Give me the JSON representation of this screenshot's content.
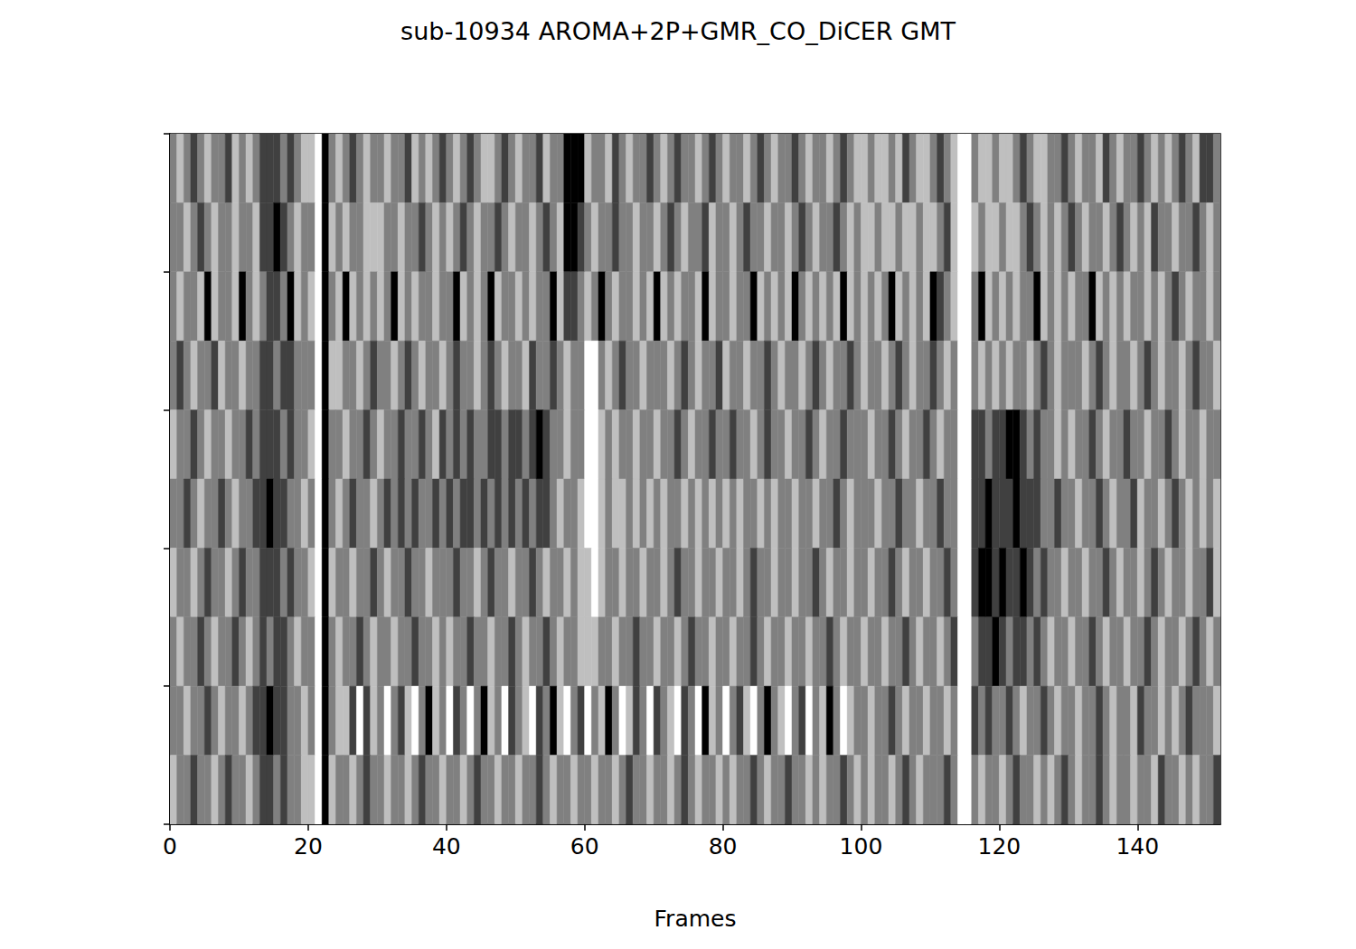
{
  "chart_data": {
    "type": "heatmap",
    "title": "sub-10934 AROMA+2P+GMR_CO_DiCER GMT",
    "x_label": "Frames",
    "xlim": [
      0,
      152
    ],
    "xticks": [
      0,
      20,
      40,
      60,
      80,
      100,
      120,
      140
    ],
    "ylim": [
      0,
      10
    ],
    "yticks": [
      0,
      2,
      4,
      6,
      8,
      10
    ],
    "tick_labels": "x",
    "color_range": [
      -2,
      2
    ],
    "cells": [
      [
        0,
        1,
        0,
        -1,
        0,
        1,
        0,
        0,
        -1,
        1,
        0,
        1,
        0,
        -1,
        -1,
        -1,
        0,
        -1,
        0,
        1,
        1,
        2,
        -2,
        0,
        1,
        0,
        -1,
        0,
        1,
        0,
        0,
        1,
        0,
        0,
        -1,
        1,
        0,
        1,
        0,
        -1,
        0,
        1,
        0,
        -1,
        0,
        1,
        1,
        0,
        -1,
        0,
        1,
        0,
        0,
        -1,
        1,
        0,
        0,
        -2,
        -2,
        -2,
        1,
        0,
        0,
        1,
        -1,
        0,
        1,
        0,
        0,
        -1,
        0,
        1,
        0,
        -1,
        0,
        0,
        1,
        0,
        -1,
        0,
        1,
        0,
        0,
        1,
        0,
        -1,
        0,
        1,
        0,
        0,
        -1,
        0,
        1,
        0,
        0,
        1,
        0,
        -1,
        0,
        1,
        1,
        0,
        1,
        1,
        0,
        1,
        -1,
        0,
        1,
        1,
        0,
        -1,
        0,
        1,
        2,
        2,
        0,
        1,
        1,
        0,
        1,
        1,
        0,
        -1,
        0,
        1,
        1,
        0,
        0,
        -1,
        0,
        1,
        0,
        0,
        1,
        -1,
        0,
        1,
        0,
        0,
        -1,
        0,
        1,
        0,
        1,
        0,
        -1,
        0,
        1,
        -1,
        -1,
        0
      ],
      [
        0,
        0,
        1,
        0,
        -1,
        0,
        1,
        0,
        0,
        1,
        0,
        0,
        1,
        -1,
        -1,
        -2,
        -1,
        0,
        1,
        0,
        0,
        2,
        -2,
        1,
        0,
        1,
        0,
        0,
        1,
        1,
        1,
        0,
        0,
        1,
        0,
        0,
        -1,
        0,
        1,
        0,
        1,
        0,
        -1,
        0,
        1,
        0,
        0,
        -1,
        0,
        1,
        0,
        0,
        1,
        0,
        -1,
        0,
        1,
        -2,
        -2,
        -1,
        0,
        1,
        0,
        0,
        -1,
        0,
        0,
        1,
        0,
        0,
        1,
        0,
        -1,
        0,
        1,
        0,
        0,
        -1,
        1,
        0,
        0,
        1,
        0,
        -1,
        0,
        0,
        1,
        0,
        0,
        1,
        0,
        -1,
        0,
        1,
        0,
        0,
        -1,
        0,
        1,
        0,
        1,
        1,
        0,
        1,
        1,
        0,
        1,
        1,
        0,
        1,
        1,
        0,
        -1,
        1,
        2,
        2,
        1,
        0,
        1,
        1,
        0,
        1,
        1,
        0,
        -1,
        0,
        1,
        0,
        1,
        0,
        -1,
        0,
        1,
        0,
        0,
        1,
        0,
        -1,
        0,
        1,
        0,
        1,
        -1,
        0,
        0,
        1,
        0,
        0,
        -1,
        0,
        1,
        0
      ],
      [
        0,
        1,
        0,
        0,
        1,
        -2,
        1,
        0,
        0,
        1,
        -2,
        0,
        1,
        0,
        -1,
        -1,
        0,
        -2,
        1,
        0,
        1,
        2,
        -2,
        0,
        1,
        -2,
        1,
        0,
        1,
        0,
        1,
        0,
        -2,
        1,
        0,
        1,
        0,
        0,
        1,
        0,
        0,
        -2,
        1,
        0,
        1,
        0,
        -2,
        1,
        0,
        0,
        1,
        0,
        1,
        0,
        0,
        -2,
        1,
        -1,
        -1,
        0,
        1,
        0,
        -2,
        0,
        1,
        0,
        0,
        1,
        0,
        1,
        -2,
        1,
        0,
        1,
        0,
        0,
        1,
        -2,
        1,
        0,
        0,
        1,
        0,
        0,
        -2,
        1,
        0,
        1,
        0,
        1,
        -2,
        0,
        1,
        0,
        1,
        0,
        1,
        -2,
        1,
        0,
        1,
        0,
        1,
        0,
        -2,
        1,
        0,
        1,
        0,
        1,
        -2,
        -1,
        0,
        1,
        2,
        2,
        0,
        -2,
        1,
        0,
        1,
        0,
        1,
        0,
        0,
        -2,
        1,
        0,
        1,
        0,
        1,
        0,
        0,
        -2,
        1,
        0,
        1,
        0,
        1,
        0,
        0,
        1,
        0,
        1,
        0,
        -1,
        0,
        1,
        0,
        0,
        1,
        0
      ],
      [
        0,
        -1,
        0,
        1,
        0,
        0,
        -1,
        1,
        0,
        0,
        1,
        0,
        0,
        -1,
        -1,
        0,
        -1,
        -1,
        0,
        0,
        0,
        2,
        -2,
        1,
        1,
        0,
        0,
        1,
        0,
        -1,
        0,
        0,
        1,
        0,
        -1,
        0,
        1,
        0,
        0,
        1,
        0,
        -1,
        0,
        0,
        1,
        0,
        -1,
        0,
        1,
        0,
        0,
        1,
        -1,
        0,
        0,
        -1,
        0,
        1,
        0,
        0,
        2,
        2,
        0,
        1,
        0,
        -1,
        0,
        0,
        1,
        0,
        0,
        0,
        1,
        0,
        -1,
        0,
        1,
        0,
        0,
        -1,
        1,
        0,
        0,
        1,
        0,
        0,
        -1,
        0,
        1,
        0,
        0,
        1,
        0,
        -1,
        0,
        1,
        0,
        0,
        -1,
        0,
        1,
        0,
        0,
        1,
        0,
        -1,
        0,
        1,
        0,
        0,
        -1,
        0,
        1,
        0,
        2,
        2,
        0,
        1,
        0,
        1,
        0,
        1,
        0,
        0,
        1,
        0,
        -1,
        0,
        1,
        0,
        0,
        0,
        1,
        0,
        -1,
        0,
        1,
        0,
        0,
        1,
        0,
        -1,
        0,
        1,
        0,
        0,
        1,
        0,
        -1,
        0,
        0,
        1
      ],
      [
        1,
        0,
        0,
        -1,
        0,
        1,
        0,
        0,
        1,
        0,
        0,
        -1,
        0,
        -1,
        -1,
        -1,
        0,
        -1,
        0,
        0,
        1,
        2,
        -2,
        0,
        0,
        1,
        0,
        0,
        -1,
        0,
        1,
        0,
        0,
        -1,
        0,
        0,
        -1,
        0,
        1,
        -1,
        0,
        -1,
        0,
        -1,
        0,
        0,
        -1,
        -1,
        0,
        -1,
        -1,
        0,
        -1,
        -2,
        -1,
        0,
        0,
        1,
        0,
        0,
        2,
        2,
        1,
        0,
        1,
        0,
        0,
        1,
        0,
        0,
        1,
        0,
        0,
        -1,
        0,
        1,
        0,
        0,
        -1,
        0,
        0,
        -1,
        0,
        0,
        1,
        0,
        -1,
        0,
        0,
        1,
        0,
        0,
        -1,
        0,
        1,
        0,
        0,
        -1,
        0,
        0,
        0,
        1,
        0,
        0,
        -1,
        0,
        1,
        0,
        0,
        -1,
        0,
        1,
        0,
        0,
        2,
        2,
        -1,
        -1,
        0,
        -1,
        -1,
        -2,
        -2,
        -1,
        0,
        -1,
        0,
        0,
        1,
        0,
        1,
        0,
        0,
        -1,
        0,
        1,
        0,
        0,
        -1,
        0,
        0,
        1,
        0,
        0,
        -1,
        0,
        1,
        0,
        0,
        1,
        0,
        0
      ],
      [
        0,
        0,
        -1,
        0,
        1,
        0,
        0,
        -1,
        0,
        1,
        0,
        0,
        -1,
        -1,
        -2,
        -1,
        -1,
        0,
        0,
        1,
        0,
        2,
        -2,
        0,
        1,
        0,
        -1,
        0,
        0,
        1,
        0,
        -1,
        0,
        -1,
        0,
        -1,
        0,
        0,
        -1,
        0,
        -1,
        0,
        -1,
        -1,
        0,
        -1,
        0,
        -1,
        0,
        -1,
        0,
        -1,
        0,
        -1,
        -1,
        0,
        1,
        0,
        0,
        1,
        2,
        2,
        1,
        0,
        1,
        1,
        0,
        1,
        0,
        1,
        0,
        1,
        0,
        0,
        1,
        0,
        1,
        0,
        1,
        0,
        1,
        0,
        1,
        0,
        0,
        1,
        0,
        1,
        0,
        0,
        1,
        0,
        0,
        1,
        0,
        0,
        -1,
        0,
        1,
        0,
        0,
        0,
        1,
        0,
        0,
        -1,
        0,
        0,
        1,
        0,
        0,
        -1,
        0,
        0,
        2,
        2,
        -1,
        -1,
        -2,
        -1,
        -1,
        -1,
        -2,
        -1,
        -1,
        -1,
        0,
        0,
        -1,
        0,
        0,
        1,
        0,
        0,
        -1,
        0,
        1,
        0,
        0,
        -1,
        1,
        0,
        0,
        1,
        0,
        -1,
        0,
        1,
        0,
        1,
        0,
        1
      ],
      [
        1,
        0,
        0,
        1,
        0,
        -1,
        0,
        0,
        1,
        0,
        -1,
        0,
        0,
        -1,
        -1,
        -1,
        0,
        -1,
        0,
        0,
        1,
        2,
        -2,
        1,
        0,
        0,
        1,
        0,
        0,
        -1,
        0,
        1,
        0,
        0,
        -1,
        0,
        0,
        1,
        0,
        0,
        0,
        -1,
        0,
        0,
        1,
        0,
        -1,
        0,
        0,
        1,
        0,
        0,
        -1,
        0,
        1,
        0,
        0,
        1,
        0,
        1,
        1,
        2,
        1,
        0,
        0,
        1,
        0,
        0,
        1,
        0,
        0,
        1,
        0,
        -1,
        0,
        0,
        1,
        0,
        0,
        1,
        0,
        0,
        1,
        0,
        -1,
        0,
        0,
        1,
        0,
        0,
        1,
        0,
        0,
        -1,
        0,
        1,
        0,
        0,
        1,
        0,
        0,
        1,
        0,
        0,
        -1,
        0,
        1,
        0,
        0,
        1,
        0,
        0,
        -1,
        0,
        2,
        2,
        -1,
        -2,
        -2,
        -1,
        -2,
        -1,
        -1,
        -2,
        -1,
        0,
        -1,
        0,
        0,
        1,
        0,
        0,
        1,
        0,
        0,
        -1,
        0,
        1,
        0,
        0,
        1,
        0,
        -1,
        0,
        1,
        0,
        0,
        1,
        0,
        0,
        -1,
        1
      ],
      [
        0,
        1,
        0,
        0,
        -1,
        0,
        1,
        0,
        0,
        -1,
        0,
        1,
        0,
        -1,
        0,
        -1,
        -1,
        0,
        1,
        0,
        0,
        2,
        -2,
        0,
        1,
        0,
        0,
        -1,
        0,
        1,
        0,
        0,
        1,
        0,
        0,
        -1,
        0,
        0,
        1,
        0,
        1,
        0,
        0,
        -1,
        0,
        0,
        1,
        0,
        0,
        -1,
        0,
        1,
        0,
        0,
        -1,
        0,
        1,
        0,
        0,
        1,
        1,
        1,
        0,
        0,
        1,
        0,
        0,
        -1,
        0,
        0,
        1,
        0,
        0,
        1,
        0,
        -1,
        0,
        0,
        1,
        0,
        0,
        1,
        0,
        0,
        -1,
        0,
        1,
        0,
        0,
        1,
        0,
        0,
        1,
        0,
        0,
        -1,
        0,
        1,
        0,
        0,
        1,
        0,
        0,
        1,
        0,
        0,
        -1,
        0,
        1,
        0,
        0,
        1,
        0,
        -1,
        2,
        2,
        0,
        -1,
        -1,
        -2,
        -1,
        0,
        -1,
        -1,
        0,
        -1,
        0,
        1,
        0,
        0,
        1,
        0,
        0,
        -1,
        0,
        1,
        0,
        0,
        1,
        0,
        0,
        -1,
        0,
        1,
        0,
        0,
        1,
        0,
        -1,
        0,
        1,
        0
      ],
      [
        0,
        0,
        1,
        0,
        0,
        -1,
        0,
        1,
        0,
        0,
        1,
        0,
        -1,
        -1,
        -2,
        -1,
        -1,
        0,
        0,
        1,
        0,
        2,
        -2,
        0,
        1,
        1,
        -1,
        2,
        -1,
        1,
        0,
        2,
        0,
        -1,
        1,
        2,
        0,
        -2,
        1,
        0,
        2,
        -1,
        0,
        2,
        0,
        -2,
        1,
        0,
        2,
        -1,
        0,
        1,
        2,
        -1,
        0,
        -2,
        1,
        2,
        0,
        -1,
        2,
        0,
        1,
        -2,
        0,
        2,
        1,
        -1,
        0,
        2,
        -1,
        0,
        1,
        2,
        -1,
        0,
        2,
        -2,
        1,
        0,
        2,
        0,
        -1,
        1,
        2,
        0,
        -2,
        0,
        1,
        2,
        0,
        -1,
        2,
        0,
        1,
        -2,
        0,
        2,
        1,
        0,
        0,
        1,
        0,
        0,
        -1,
        0,
        1,
        0,
        0,
        1,
        0,
        0,
        1,
        0,
        2,
        2,
        -1,
        0,
        -1,
        0,
        0,
        -1,
        0,
        1,
        0,
        0,
        -1,
        0,
        1,
        0,
        0,
        1,
        0,
        0,
        -1,
        0,
        1,
        0,
        0,
        1,
        -1,
        0,
        0,
        1,
        0,
        1,
        0,
        -1,
        0,
        0,
        0,
        1
      ],
      [
        1,
        0,
        0,
        -1,
        0,
        0,
        1,
        0,
        -1,
        0,
        0,
        1,
        0,
        -1,
        -1,
        0,
        -1,
        0,
        0,
        1,
        1,
        2,
        -2,
        1,
        0,
        0,
        1,
        0,
        -1,
        0,
        0,
        1,
        0,
        0,
        1,
        0,
        -1,
        0,
        0,
        1,
        0,
        0,
        1,
        0,
        -1,
        0,
        0,
        1,
        0,
        0,
        1,
        0,
        0,
        -1,
        0,
        1,
        0,
        0,
        1,
        0,
        0,
        1,
        0,
        0,
        1,
        0,
        -1,
        0,
        0,
        1,
        0,
        0,
        1,
        0,
        -1,
        0,
        1,
        0,
        0,
        1,
        0,
        1,
        0,
        0,
        -1,
        0,
        1,
        0,
        0,
        -1,
        0,
        0,
        1,
        0,
        1,
        0,
        0,
        -1,
        0,
        1,
        0,
        1,
        0,
        0,
        1,
        0,
        -1,
        0,
        1,
        0,
        0,
        0,
        -1,
        0,
        2,
        2,
        0,
        1,
        0,
        0,
        1,
        0,
        -1,
        0,
        0,
        1,
        0,
        1,
        0,
        -1,
        0,
        1,
        0,
        0,
        -1,
        0,
        1,
        0,
        0,
        1,
        0,
        0,
        1,
        -1,
        0,
        0,
        1,
        0,
        1,
        0,
        0,
        -1
      ]
    ]
  }
}
